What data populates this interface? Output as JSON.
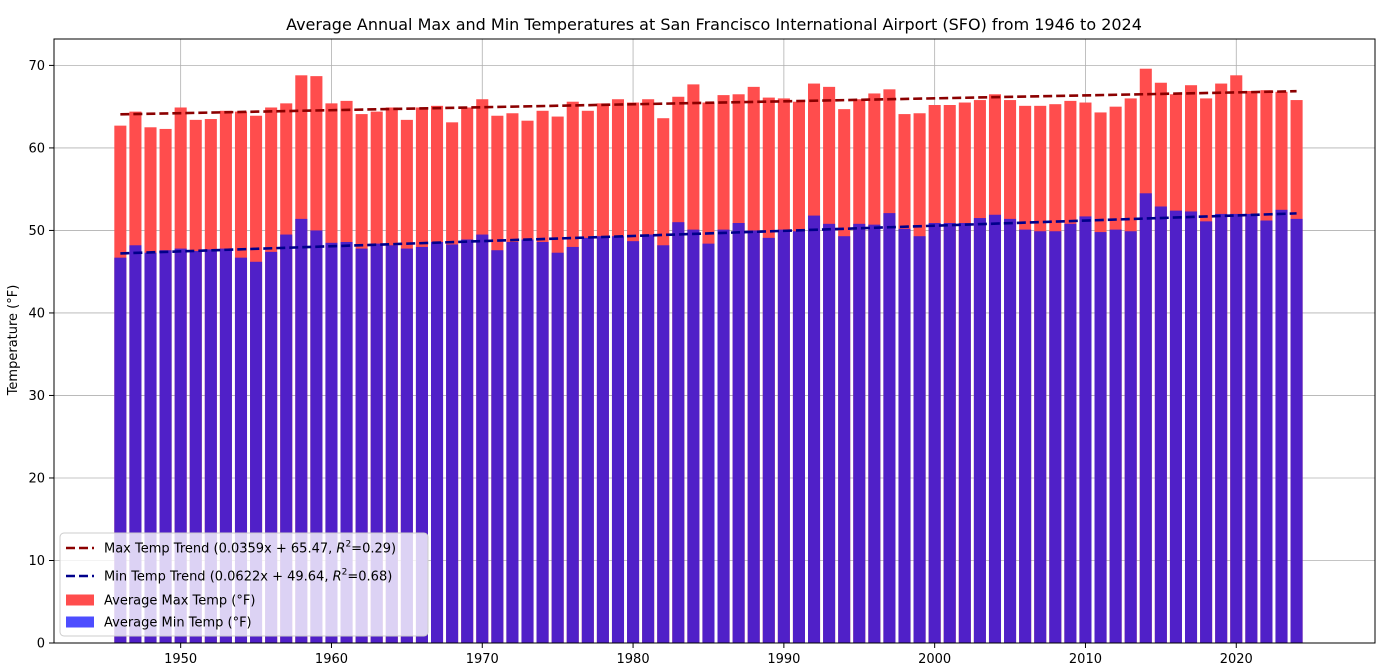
{
  "chart_data": {
    "type": "bar",
    "title": "Average Annual Max and Min Temperatures at San Francisco International Airport (SFO) from 1946 to 2024",
    "xlabel": "",
    "ylabel": "Temperature (°F)",
    "xlim": [
      1941.6,
      2029.2
    ],
    "ylim": [
      0,
      73.2
    ],
    "x_ticks": [
      1950,
      1960,
      1970,
      1980,
      1990,
      2000,
      2010,
      2020
    ],
    "y_ticks": [
      0,
      10,
      20,
      30,
      40,
      50,
      60,
      70
    ],
    "grid": true,
    "legend_position": "lower-left",
    "x": [
      1946,
      1947,
      1948,
      1949,
      1950,
      1951,
      1952,
      1953,
      1954,
      1955,
      1956,
      1957,
      1958,
      1959,
      1960,
      1961,
      1962,
      1963,
      1964,
      1965,
      1966,
      1967,
      1968,
      1969,
      1970,
      1971,
      1972,
      1973,
      1974,
      1975,
      1976,
      1977,
      1978,
      1979,
      1980,
      1981,
      1982,
      1983,
      1984,
      1985,
      1986,
      1987,
      1988,
      1989,
      1990,
      1991,
      1992,
      1993,
      1994,
      1995,
      1996,
      1997,
      1998,
      1999,
      2000,
      2001,
      2002,
      2003,
      2004,
      2005,
      2006,
      2007,
      2008,
      2009,
      2010,
      2011,
      2012,
      2013,
      2014,
      2015,
      2016,
      2017,
      2018,
      2019,
      2020,
      2021,
      2022,
      2023,
      2024
    ],
    "series": [
      {
        "name": "Average Max Temp (°F)",
        "color": "#ff4d4d",
        "values": [
          62.7,
          64.4,
          62.5,
          62.3,
          64.9,
          63.4,
          63.5,
          64.5,
          64.4,
          63.9,
          64.9,
          65.4,
          68.8,
          68.7,
          65.4,
          65.7,
          64.1,
          64.4,
          64.9,
          63.4,
          64.9,
          65.1,
          63.1,
          64.9,
          65.9,
          63.9,
          64.2,
          63.3,
          64.5,
          63.8,
          65.6,
          64.5,
          65.4,
          65.9,
          65.5,
          65.9,
          63.6,
          66.2,
          67.7,
          65.5,
          66.4,
          66.5,
          67.4,
          66.1,
          66.0,
          65.6,
          67.8,
          67.4,
          64.7,
          65.9,
          66.6,
          67.1,
          64.1,
          64.2,
          65.2,
          65.2,
          65.5,
          65.8,
          66.5,
          65.8,
          65.1,
          65.1,
          65.3,
          65.7,
          65.5,
          64.3,
          65.0,
          66.0,
          69.6,
          67.9,
          66.5,
          67.6,
          66.0,
          67.8,
          68.8,
          66.9,
          67.0,
          66.8,
          65.8
        ]
      },
      {
        "name": "Average Min Temp (°F)",
        "color": "#4d4dff",
        "values": [
          46.7,
          48.2,
          47.3,
          47.6,
          47.8,
          47.5,
          47.7,
          47.8,
          46.7,
          46.2,
          47.4,
          49.5,
          51.4,
          50.0,
          48.5,
          48.6,
          47.8,
          48.4,
          48.2,
          47.8,
          48.0,
          48.6,
          48.3,
          48.9,
          49.5,
          47.6,
          48.6,
          48.9,
          48.6,
          47.3,
          48.0,
          49.1,
          49.3,
          49.3,
          48.7,
          49.5,
          48.2,
          51.0,
          50.1,
          48.4,
          50.1,
          50.9,
          50.0,
          49.1,
          50.1,
          49.9,
          51.8,
          50.8,
          49.3,
          50.8,
          50.7,
          52.1,
          50.2,
          49.3,
          50.9,
          50.9,
          50.9,
          51.5,
          51.9,
          51.4,
          50.1,
          49.9,
          49.9,
          50.8,
          51.7,
          49.8,
          50.1,
          49.9,
          54.5,
          52.9,
          52.4,
          52.3,
          51.1,
          52.0,
          52.0,
          52.0,
          51.2,
          52.5,
          51.4
        ]
      }
    ],
    "trend_lines": [
      {
        "name": "Max Temp Trend (0.0359x + 65.47, R²=0.29)",
        "color": "#8b0000",
        "slope": 0.0359,
        "intercept": 65.47,
        "x_center": 1985,
        "x_range": [
          1946,
          2024
        ]
      },
      {
        "name": "Min Temp Trend (0.0622x + 49.64, R²=0.68)",
        "color": "#00008b",
        "slope": 0.0622,
        "intercept": 49.64,
        "x_center": 1985,
        "x_range": [
          1946,
          2024
        ]
      }
    ],
    "overlap_color": "#5020c8",
    "legend": [
      {
        "label": "Max Temp Trend (0.0359x + 65.47, ",
        "sup": "2",
        "suffix": "=0.29)",
        "kind": "line",
        "color": "#8b0000"
      },
      {
        "label": "Min Temp Trend (0.0622x + 49.64, ",
        "sup": "2",
        "suffix": "=0.68)",
        "kind": "line",
        "color": "#00008b"
      },
      {
        "label": "Average Max Temp (°F)",
        "kind": "patch",
        "color": "#ff4d4d"
      },
      {
        "label": "Average Min Temp (°F)",
        "kind": "patch",
        "color": "#4d4dff"
      }
    ]
  }
}
